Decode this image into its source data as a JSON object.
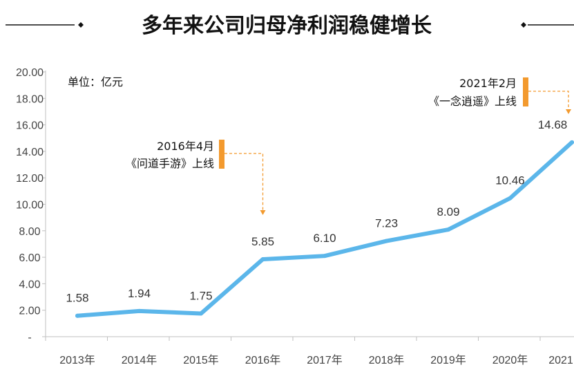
{
  "chart_data": {
    "type": "line",
    "title": "多年来公司归母净利润稳健增长",
    "unit_label": "单位：亿元",
    "categories": [
      "2013年",
      "2014年",
      "2015年",
      "2016年",
      "2017年",
      "2018年",
      "2019年",
      "2020年",
      "2021"
    ],
    "values": [
      1.58,
      1.94,
      1.75,
      5.85,
      6.1,
      7.23,
      8.09,
      10.46,
      14.68
    ],
    "value_labels": [
      "1.58",
      "1.94",
      "1.75",
      "5.85",
      "6.10",
      "7.23",
      "8.09",
      "10.46",
      "14.68"
    ],
    "y_ticks": [
      "-",
      "2.00",
      "4.00",
      "6.00",
      "8.00",
      "10.00",
      "12.00",
      "14.00",
      "16.00",
      "18.00",
      "20.00"
    ],
    "ylim": [
      0,
      20
    ],
    "grid": false,
    "colors": {
      "line": "#5bb6ea",
      "marker": "#f39a2e",
      "arrow": "#f39a2e",
      "axis": "#bfbfbf"
    },
    "annotations": [
      {
        "line1": "2016年4月",
        "line2": "《问道手游》上线",
        "category_index": 3
      },
      {
        "line1": "2021年2月",
        "line2": "《一念逍遥》上线",
        "category_index": 8
      }
    ]
  }
}
